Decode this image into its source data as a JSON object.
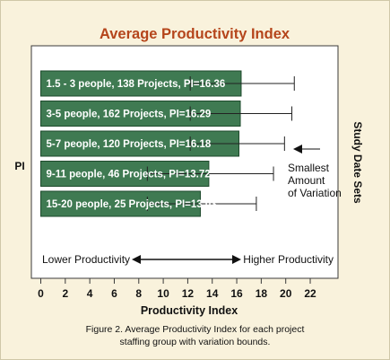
{
  "chart_data": {
    "type": "bar",
    "orientation": "horizontal",
    "title": "Average Productivity Index",
    "xlabel": "Productivity Index",
    "ylabel_left": "PI",
    "ylabel_right": "Study Date Sets",
    "xlim": [
      0,
      24
    ],
    "xticks": [
      0,
      2,
      4,
      6,
      8,
      10,
      12,
      14,
      16,
      18,
      20,
      22
    ],
    "grid": false,
    "bars": [
      {
        "label": "1.5 - 3 people, 138 Projects, PI=16.36",
        "value": 16.36,
        "lower": 12.2,
        "upper": 20.7
      },
      {
        "label": "3-5 people, 162 Projects, PI=16.29",
        "value": 16.29,
        "lower": 12.2,
        "upper": 20.5
      },
      {
        "label": "5-7 people, 120 Projects, PI=16.18",
        "value": 16.18,
        "lower": 12.2,
        "upper": 19.9
      },
      {
        "label": "9-11 people, 46 Projects, PI=13.72",
        "value": 13.72,
        "lower": 8.7,
        "upper": 19.0
      },
      {
        "label": "15-20 people, 25 Projects, PI=13.03",
        "value": 13.03,
        "lower": 8.7,
        "upper": 17.6
      }
    ],
    "annotation": {
      "lines": [
        "Smallest",
        "Amount",
        "of Variation"
      ],
      "points_to_bar": 2
    },
    "scale_labels": {
      "left": "Lower Productivity",
      "right": "Higher Productivity"
    },
    "caption": [
      "Figure 2.  Average Productivity Index for each project",
      "staffing group with variation bounds."
    ],
    "colors": {
      "title": "#b5451b",
      "bar_fill": "#3f7a52",
      "bar_edge": "#1e4a2c",
      "background": "#f9f2dc",
      "plot_area": "#ffffff"
    }
  }
}
